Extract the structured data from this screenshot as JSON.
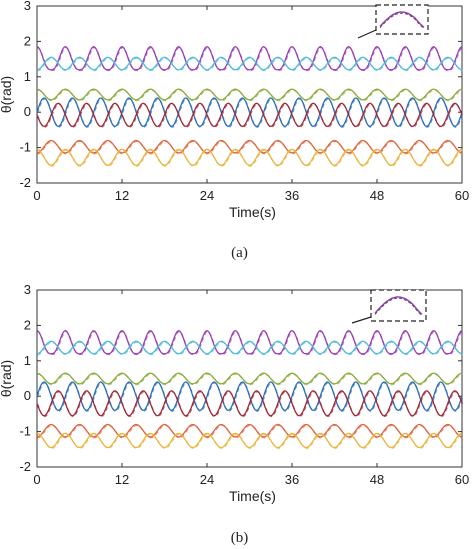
{
  "chart_data": [
    {
      "type": "line",
      "panel_label": "(a)",
      "xlabel": "Time(s)",
      "ylabel": "θ(rad)",
      "xlim": [
        0,
        60
      ],
      "ylim": [
        -2,
        3
      ],
      "xticks": [
        0,
        12,
        24,
        36,
        48,
        60
      ],
      "yticks": [
        -2,
        -1,
        0,
        1,
        2,
        3
      ],
      "grid": false,
      "period_s": 4,
      "series": [
        {
          "color": "#9b3fb5",
          "min": 1.2,
          "max": 1.85,
          "phase": 0.0,
          "peaked": true
        },
        {
          "color": "#4fbbd6",
          "min": 1.2,
          "max": 1.55,
          "phase": 0.5,
          "peaked": false
        },
        {
          "color": "#8aac3a",
          "min": 0.35,
          "max": 0.65,
          "phase": 0.0,
          "peaked": false
        },
        {
          "color": "#2d6fb8",
          "min": -0.4,
          "max": 0.4,
          "phase": 0.25,
          "peaked": false
        },
        {
          "color": "#9e2a3a",
          "min": -0.4,
          "max": 0.25,
          "phase": 0.75,
          "peaked": false
        },
        {
          "color": "#e2633d",
          "min": -1.15,
          "max": -0.8,
          "phase": 0.5,
          "peaked": false
        },
        {
          "color": "#e8b53a",
          "min": -1.5,
          "max": -1.05,
          "phase": 0.0,
          "peaked": false
        }
      ],
      "inset": {
        "series_color": "#9b3fb5",
        "border": "dashed"
      }
    },
    {
      "type": "line",
      "panel_label": "(b)",
      "xlabel": "Time(s)",
      "ylabel": "θ(rad)",
      "xlim": [
        0,
        60
      ],
      "ylim": [
        -2,
        3
      ],
      "xticks": [
        0,
        12,
        24,
        36,
        48,
        60
      ],
      "yticks": [
        -2,
        -1,
        0,
        1,
        2,
        3
      ],
      "grid": false,
      "period_s": 4,
      "series": [
        {
          "color": "#9b3fb5",
          "min": 1.2,
          "max": 1.85,
          "phase": 0.0,
          "peaked": true
        },
        {
          "color": "#4fbbd6",
          "min": 1.2,
          "max": 1.55,
          "phase": 0.5,
          "peaked": false
        },
        {
          "color": "#8aac3a",
          "min": 0.35,
          "max": 0.65,
          "phase": 0.0,
          "peaked": false
        },
        {
          "color": "#2d6fb8",
          "min": -0.4,
          "max": 0.4,
          "phase": 0.25,
          "peaked": false
        },
        {
          "color": "#9e2a3a",
          "min": -0.55,
          "max": 0.15,
          "phase": 0.75,
          "peaked": false
        },
        {
          "color": "#e2633d",
          "min": -1.15,
          "max": -0.8,
          "phase": 0.5,
          "peaked": false
        },
        {
          "color": "#e8b53a",
          "min": -1.45,
          "max": -1.05,
          "phase": 0.0,
          "peaked": false
        }
      ],
      "inset": {
        "series_color": "#9b3fb5",
        "border": "dashed"
      }
    }
  ]
}
